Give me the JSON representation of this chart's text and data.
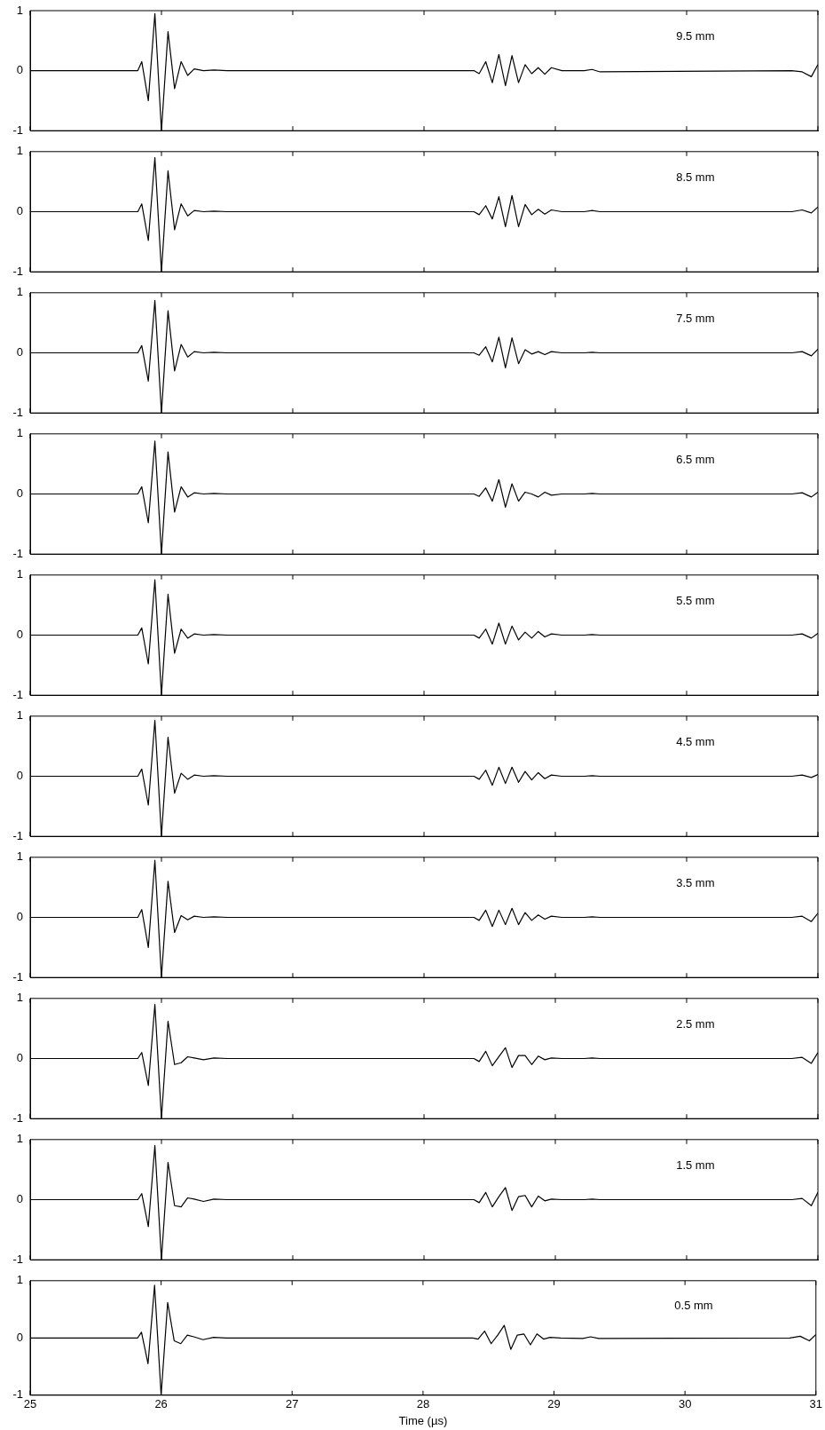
{
  "chart_data": [
    {
      "type": "line",
      "x": [
        25,
        25.82,
        25.85,
        25.9,
        25.95,
        26.0,
        26.05,
        26.1,
        26.15,
        26.2,
        26.25,
        26.32,
        26.4,
        26.5,
        28.38,
        28.42,
        28.47,
        28.52,
        28.57,
        28.62,
        28.67,
        28.72,
        28.77,
        28.82,
        28.87,
        28.92,
        28.97,
        29.05,
        29.22,
        29.28,
        29.34,
        30.8,
        30.88,
        30.95,
        31
      ],
      "values": [
        0,
        0,
        0.15,
        -0.5,
        0.95,
        -1,
        0.65,
        -0.3,
        0.15,
        -0.08,
        0.03,
        0,
        0.01,
        0,
        0,
        -0.05,
        0.15,
        -0.2,
        0.27,
        -0.25,
        0.25,
        -0.2,
        0.1,
        -0.05,
        0.05,
        -0.06,
        0.05,
        0,
        0,
        0.02,
        -0.02,
        0,
        -0.02,
        -0.1,
        0.1
      ],
      "color": "#000000",
      "xlim": [
        25,
        31
      ],
      "ylim": [
        -1,
        1
      ],
      "xticks": [
        25,
        26,
        27,
        28,
        29,
        30,
        31
      ],
      "yticks": [
        -1,
        0,
        1
      ],
      "tick_labels": "y",
      "annotations": [
        "9.5 mm"
      ]
    },
    {
      "type": "line",
      "x": [
        25,
        25.82,
        25.85,
        25.9,
        25.95,
        26.0,
        26.05,
        26.1,
        26.15,
        26.2,
        26.25,
        26.32,
        26.4,
        26.5,
        28.38,
        28.42,
        28.47,
        28.52,
        28.57,
        28.62,
        28.67,
        28.72,
        28.77,
        28.82,
        28.87,
        28.92,
        28.97,
        29.05,
        29.22,
        29.28,
        29.34,
        30.8,
        30.88,
        30.95,
        31
      ],
      "values": [
        0,
        0,
        0.13,
        -0.48,
        0.9,
        -1,
        0.68,
        -0.3,
        0.13,
        -0.07,
        0.02,
        0,
        0.01,
        0,
        0,
        -0.05,
        0.1,
        -0.12,
        0.25,
        -0.25,
        0.27,
        -0.25,
        0.12,
        -0.05,
        0.04,
        -0.04,
        0.03,
        0,
        0,
        0.02,
        0,
        0,
        0.03,
        -0.02,
        0.08
      ],
      "color": "#000000",
      "xlim": [
        25,
        31
      ],
      "ylim": [
        -1,
        1
      ],
      "xticks": [
        25,
        26,
        27,
        28,
        29,
        30,
        31
      ],
      "yticks": [
        -1,
        0,
        1
      ],
      "tick_labels": "y",
      "annotations": [
        "8.5 mm"
      ]
    },
    {
      "type": "line",
      "x": [
        25,
        25.82,
        25.85,
        25.9,
        25.95,
        26.0,
        26.05,
        26.1,
        26.15,
        26.2,
        26.25,
        26.32,
        26.4,
        26.5,
        28.38,
        28.42,
        28.47,
        28.52,
        28.57,
        28.62,
        28.67,
        28.72,
        28.77,
        28.82,
        28.87,
        28.92,
        28.97,
        29.05,
        29.22,
        29.28,
        29.34,
        30.8,
        30.88,
        30.95,
        31
      ],
      "values": [
        0,
        0,
        0.12,
        -0.47,
        0.87,
        -1,
        0.7,
        -0.3,
        0.14,
        -0.07,
        0.02,
        0,
        0.01,
        0,
        0,
        -0.04,
        0.1,
        -0.15,
        0.26,
        -0.25,
        0.25,
        -0.18,
        0.05,
        -0.02,
        0.02,
        -0.03,
        0.02,
        0,
        0,
        0.01,
        0,
        0,
        0.02,
        -0.05,
        0.06
      ],
      "color": "#000000",
      "xlim": [
        25,
        31
      ],
      "ylim": [
        -1,
        1
      ],
      "xticks": [
        25,
        26,
        27,
        28,
        29,
        30,
        31
      ],
      "yticks": [
        -1,
        0,
        1
      ],
      "tick_labels": "y",
      "annotations": [
        "7.5 mm"
      ]
    },
    {
      "type": "line",
      "x": [
        25,
        25.82,
        25.85,
        25.9,
        25.95,
        26.0,
        26.05,
        26.1,
        26.15,
        26.2,
        26.25,
        26.32,
        26.4,
        26.5,
        28.38,
        28.42,
        28.47,
        28.52,
        28.57,
        28.62,
        28.67,
        28.72,
        28.77,
        28.82,
        28.87,
        28.92,
        28.97,
        29.05,
        29.22,
        29.28,
        29.34,
        30.8,
        30.88,
        30.95,
        31
      ],
      "values": [
        0,
        0,
        0.12,
        -0.48,
        0.88,
        -1,
        0.7,
        -0.3,
        0.12,
        -0.05,
        0.02,
        0,
        0.01,
        0,
        0,
        -0.04,
        0.1,
        -0.12,
        0.24,
        -0.22,
        0.17,
        -0.12,
        0.03,
        0,
        -0.05,
        0.03,
        -0.02,
        0,
        0,
        0.01,
        0,
        0,
        0.02,
        -0.05,
        0.03
      ],
      "color": "#000000",
      "xlim": [
        25,
        31
      ],
      "ylim": [
        -1,
        1
      ],
      "xticks": [
        25,
        26,
        27,
        28,
        29,
        30,
        31
      ],
      "yticks": [
        -1,
        0,
        1
      ],
      "tick_labels": "y",
      "annotations": [
        "6.5 mm"
      ]
    },
    {
      "type": "line",
      "x": [
        25,
        25.82,
        25.85,
        25.9,
        25.95,
        26.0,
        26.05,
        26.1,
        26.15,
        26.2,
        26.25,
        26.32,
        26.4,
        26.5,
        28.38,
        28.42,
        28.47,
        28.52,
        28.57,
        28.62,
        28.67,
        28.72,
        28.77,
        28.82,
        28.87,
        28.92,
        28.97,
        29.05,
        29.22,
        29.28,
        29.34,
        30.8,
        30.88,
        30.95,
        31
      ],
      "values": [
        0,
        0,
        0.12,
        -0.48,
        0.92,
        -1,
        0.68,
        -0.3,
        0.1,
        -0.05,
        0.02,
        0,
        0.01,
        0,
        0,
        -0.05,
        0.1,
        -0.15,
        0.2,
        -0.15,
        0.15,
        -0.08,
        0.05,
        -0.05,
        0.06,
        -0.03,
        0.02,
        0,
        0,
        0.01,
        0,
        0,
        0.02,
        -0.05,
        0.03
      ],
      "color": "#000000",
      "xlim": [
        25,
        31
      ],
      "ylim": [
        -1,
        1
      ],
      "xticks": [
        25,
        26,
        27,
        28,
        29,
        30,
        31
      ],
      "yticks": [
        -1,
        0,
        1
      ],
      "tick_labels": "y",
      "annotations": [
        "5.5 mm"
      ]
    },
    {
      "type": "line",
      "x": [
        25,
        25.82,
        25.85,
        25.9,
        25.95,
        26.0,
        26.05,
        26.1,
        26.15,
        26.2,
        26.25,
        26.32,
        26.4,
        26.5,
        28.38,
        28.42,
        28.47,
        28.52,
        28.57,
        28.62,
        28.67,
        28.72,
        28.77,
        28.82,
        28.87,
        28.92,
        28.97,
        29.05,
        29.22,
        29.28,
        29.34,
        30.8,
        30.88,
        30.95,
        31
      ],
      "values": [
        0,
        0,
        0.12,
        -0.48,
        0.93,
        -1,
        0.65,
        -0.28,
        0.05,
        -0.05,
        0.02,
        0,
        0.01,
        0,
        0,
        -0.05,
        0.1,
        -0.15,
        0.15,
        -0.12,
        0.15,
        -0.1,
        0.08,
        -0.06,
        0.06,
        -0.04,
        0.02,
        0,
        0,
        0.01,
        0,
        0,
        0.02,
        -0.02,
        0.03
      ],
      "color": "#000000",
      "xlim": [
        25,
        31
      ],
      "ylim": [
        -1,
        1
      ],
      "xticks": [
        25,
        26,
        27,
        28,
        29,
        30,
        31
      ],
      "yticks": [
        -1,
        0,
        1
      ],
      "tick_labels": "y",
      "annotations": [
        "4.5 mm"
      ]
    },
    {
      "type": "line",
      "x": [
        25,
        25.82,
        25.85,
        25.9,
        25.95,
        26.0,
        26.05,
        26.1,
        26.15,
        26.2,
        26.25,
        26.32,
        26.4,
        26.5,
        28.38,
        28.42,
        28.47,
        28.52,
        28.57,
        28.62,
        28.67,
        28.72,
        28.77,
        28.82,
        28.87,
        28.92,
        28.97,
        29.05,
        29.22,
        29.28,
        29.34,
        30.8,
        30.88,
        30.95,
        31
      ],
      "values": [
        0,
        0,
        0.13,
        -0.5,
        0.95,
        -1,
        0.6,
        -0.25,
        0.03,
        -0.04,
        0.02,
        0,
        0.01,
        0,
        0,
        -0.05,
        0.12,
        -0.15,
        0.12,
        -0.12,
        0.15,
        -0.12,
        0.08,
        -0.05,
        0.04,
        -0.03,
        0.02,
        0,
        0,
        0.01,
        0,
        0,
        0.02,
        -0.07,
        0.07
      ],
      "color": "#000000",
      "xlim": [
        25,
        31
      ],
      "ylim": [
        -1,
        1
      ],
      "xticks": [
        25,
        26,
        27,
        28,
        29,
        30,
        31
      ],
      "yticks": [
        -1,
        0,
        1
      ],
      "tick_labels": "y",
      "annotations": [
        "3.5 mm"
      ]
    },
    {
      "type": "line",
      "x": [
        25,
        25.82,
        25.85,
        25.9,
        25.95,
        26.0,
        26.05,
        26.1,
        26.15,
        26.2,
        26.25,
        26.32,
        26.4,
        26.5,
        28.38,
        28.42,
        28.47,
        28.52,
        28.57,
        28.62,
        28.67,
        28.72,
        28.77,
        28.82,
        28.87,
        28.92,
        28.97,
        29.05,
        29.22,
        29.28,
        29.34,
        30.8,
        30.88,
        30.95,
        31
      ],
      "values": [
        0,
        0,
        0.1,
        -0.45,
        0.9,
        -1,
        0.62,
        -0.1,
        -0.07,
        0.03,
        0.01,
        -0.02,
        0.01,
        0,
        0,
        -0.05,
        0.12,
        -0.12,
        0.03,
        0.18,
        -0.15,
        0.05,
        0.05,
        -0.1,
        0.04,
        -0.02,
        0.01,
        0,
        0,
        0.01,
        0,
        0,
        0.02,
        -0.08,
        0.1
      ],
      "color": "#000000",
      "xlim": [
        25,
        31
      ],
      "ylim": [
        -1,
        1
      ],
      "xticks": [
        25,
        26,
        27,
        28,
        29,
        30,
        31
      ],
      "yticks": [
        -1,
        0,
        1
      ],
      "tick_labels": "y",
      "annotations": [
        "2.5 mm"
      ]
    },
    {
      "type": "line",
      "x": [
        25,
        25.82,
        25.85,
        25.9,
        25.95,
        26.0,
        26.05,
        26.1,
        26.15,
        26.2,
        26.25,
        26.32,
        26.4,
        26.5,
        28.38,
        28.42,
        28.47,
        28.52,
        28.57,
        28.62,
        28.67,
        28.72,
        28.77,
        28.82,
        28.87,
        28.92,
        28.97,
        29.05,
        29.22,
        29.28,
        29.34,
        30.8,
        30.88,
        30.95,
        31
      ],
      "values": [
        0,
        0,
        0.1,
        -0.45,
        0.9,
        -1,
        0.62,
        -0.1,
        -0.12,
        0.03,
        0.01,
        -0.03,
        0.01,
        0,
        0,
        -0.05,
        0.12,
        -0.12,
        0.05,
        0.2,
        -0.18,
        0.05,
        0.07,
        -0.12,
        0.06,
        -0.02,
        0.01,
        0,
        0,
        0.01,
        0,
        0,
        0.02,
        -0.1,
        0.12
      ],
      "color": "#000000",
      "xlim": [
        25,
        31
      ],
      "ylim": [
        -1,
        1
      ],
      "xticks": [
        25,
        26,
        27,
        28,
        29,
        30,
        31
      ],
      "yticks": [
        -1,
        0,
        1
      ],
      "tick_labels": "y",
      "annotations": [
        "1.5 mm"
      ]
    },
    {
      "type": "line",
      "x": [
        25,
        25.82,
        25.85,
        25.9,
        25.95,
        26.0,
        26.05,
        26.1,
        26.15,
        26.2,
        26.25,
        26.32,
        26.4,
        26.5,
        28.38,
        28.42,
        28.47,
        28.52,
        28.57,
        28.62,
        28.67,
        28.72,
        28.77,
        28.82,
        28.87,
        28.92,
        28.97,
        29.05,
        29.22,
        29.28,
        29.34,
        30.8,
        30.88,
        30.95,
        31
      ],
      "values": [
        0,
        0,
        0.1,
        -0.45,
        0.92,
        -1,
        0.62,
        -0.05,
        -0.1,
        0.05,
        0.02,
        -0.03,
        0.01,
        0,
        0,
        -0.02,
        0.12,
        -0.1,
        0.05,
        0.22,
        -0.2,
        0.05,
        0.07,
        -0.12,
        0.07,
        -0.02,
        0.01,
        0,
        -0.01,
        0.02,
        -0.01,
        0,
        0.03,
        -0.05,
        0.06
      ],
      "color": "#000000",
      "xlim": [
        25,
        31
      ],
      "ylim": [
        -1,
        1
      ],
      "xticks": [
        25,
        26,
        27,
        28,
        29,
        30,
        31
      ],
      "yticks": [
        -1,
        0,
        1
      ],
      "xlabel": "Time (µs)",
      "annotations": [
        "0.5 mm"
      ]
    }
  ]
}
